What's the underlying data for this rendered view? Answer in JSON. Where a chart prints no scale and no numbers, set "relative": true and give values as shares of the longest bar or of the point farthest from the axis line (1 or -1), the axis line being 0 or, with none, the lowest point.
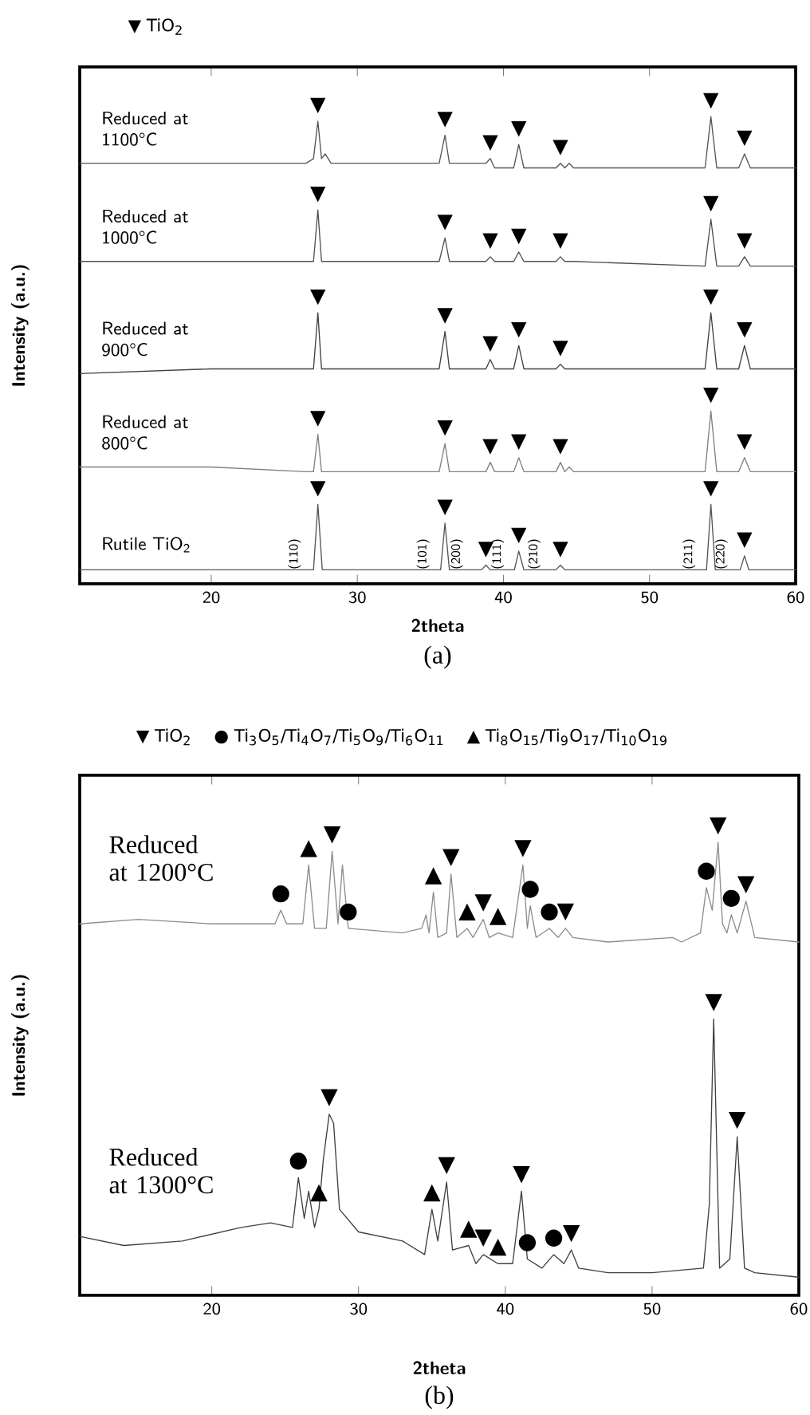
{
  "chart_data": [
    {
      "type": "line",
      "relative": true,
      "xlabel": "2theta",
      "ylabel": "Intensity (a.u.)",
      "xlim": [
        11,
        60
      ],
      "xticks": [
        20,
        30,
        40,
        50,
        60
      ],
      "x": [
        11,
        20,
        26.5,
        27.0,
        27.3,
        27.55,
        27.8,
        28.2,
        35.6,
        36.0,
        36.3,
        38.8,
        39.1,
        39.4,
        40.7,
        41.05,
        41.4,
        43.6,
        43.9,
        44.2,
        44.5,
        44.8,
        53.8,
        54.2,
        54.6,
        56.1,
        56.5,
        56.9,
        60
      ],
      "series": [
        {
          "name": "Reduced at 1100°C",
          "color": "#555555",
          "values": [
            0.9,
            0.9,
            0.9,
            0.91,
            0.99,
            0.91,
            0.92,
            0.9,
            0.9,
            0.96,
            0.9,
            0.9,
            0.91,
            0.89,
            0.89,
            0.94,
            0.89,
            0.89,
            0.9,
            0.89,
            0.9,
            0.89,
            0.89,
            1.0,
            0.89,
            0.89,
            0.92,
            0.89,
            0.89
          ]
        },
        {
          "name": "Reduced at 1000°C",
          "color": "#505050",
          "values": [
            0.69,
            0.69,
            0.69,
            0.69,
            0.8,
            0.69,
            0.69,
            0.69,
            0.69,
            0.74,
            0.69,
            0.69,
            0.7,
            0.69,
            0.69,
            0.71,
            0.69,
            0.69,
            0.7,
            0.69,
            0.69,
            0.69,
            0.68,
            0.78,
            0.68,
            0.68,
            0.7,
            0.68,
            0.68
          ]
        },
        {
          "name": "Reduced at 900°C",
          "color": "#404040",
          "values": [
            0.45,
            0.46,
            0.46,
            0.46,
            0.58,
            0.46,
            0.46,
            0.46,
            0.46,
            0.54,
            0.46,
            0.46,
            0.48,
            0.46,
            0.46,
            0.51,
            0.46,
            0.46,
            0.47,
            0.46,
            0.46,
            0.46,
            0.46,
            0.58,
            0.46,
            0.46,
            0.51,
            0.46,
            0.46
          ]
        },
        {
          "name": "Reduced at 800°C",
          "color": "#808080",
          "values": [
            0.25,
            0.25,
            0.24,
            0.24,
            0.32,
            0.24,
            0.24,
            0.24,
            0.24,
            0.3,
            0.24,
            0.24,
            0.26,
            0.24,
            0.24,
            0.27,
            0.24,
            0.24,
            0.26,
            0.24,
            0.25,
            0.24,
            0.24,
            0.37,
            0.24,
            0.24,
            0.27,
            0.24,
            0.24
          ]
        },
        {
          "name": "Rutile TiO$_{2}$",
          "color": "#555555",
          "x": [
            11,
            20,
            26.6,
            27.0,
            27.3,
            27.6,
            28.2,
            35.4,
            35.7,
            36.0,
            36.3,
            37.7,
            38.5,
            38.8,
            39.1,
            40.5,
            40.75,
            41.05,
            41.4,
            43.0,
            43.6,
            43.9,
            44.2,
            53.6,
            53.9,
            54.2,
            54.5,
            55.8,
            56.2,
            56.5,
            56.8,
            60
          ],
          "values": [
            0.03,
            0.03,
            0.03,
            0.03,
            0.17,
            0.03,
            0.03,
            0.03,
            0.03,
            0.13,
            0.03,
            0.03,
            0.03,
            0.04,
            0.03,
            0.03,
            0.03,
            0.07,
            0.03,
            0.03,
            0.03,
            0.04,
            0.03,
            0.03,
            0.03,
            0.17,
            0.03,
            0.03,
            0.03,
            0.06,
            0.03,
            0.03
          ]
        }
      ],
      "annotations": [
        "▼ TiO$_{2}$",
        {
          "text": "▼",
          "x": 27.3,
          "y": 0.99
        },
        {
          "text": "▼",
          "x": 36.0,
          "y": 0.96
        },
        {
          "text": "▼",
          "x": 39.1,
          "y": 0.91
        },
        {
          "text": "▼",
          "x": 41.05,
          "y": 0.94
        },
        {
          "text": "▼",
          "x": 43.9,
          "y": 0.9
        },
        {
          "text": "▼",
          "x": 54.2,
          "y": 1.0
        },
        {
          "text": "▼",
          "x": 56.5,
          "y": 0.92
        },
        {
          "text": "▼",
          "x": 27.3,
          "y": 0.8
        },
        {
          "text": "▼",
          "x": 36.0,
          "y": 0.74
        },
        {
          "text": "▼",
          "x": 39.1,
          "y": 0.7
        },
        {
          "text": "▼",
          "x": 41.05,
          "y": 0.71
        },
        {
          "text": "▼",
          "x": 43.9,
          "y": 0.7
        },
        {
          "text": "▼",
          "x": 54.2,
          "y": 0.78
        },
        {
          "text": "▼",
          "x": 56.5,
          "y": 0.7
        },
        {
          "text": "▼",
          "x": 27.3,
          "y": 0.58
        },
        {
          "text": "▼",
          "x": 36.0,
          "y": 0.54
        },
        {
          "text": "▼",
          "x": 39.1,
          "y": 0.48
        },
        {
          "text": "▼",
          "x": 41.05,
          "y": 0.51
        },
        {
          "text": "▼",
          "x": 43.9,
          "y": 0.47
        },
        {
          "text": "▼",
          "x": 54.2,
          "y": 0.58
        },
        {
          "text": "▼",
          "x": 56.5,
          "y": 0.51
        },
        {
          "text": "▼",
          "x": 27.3,
          "y": 0.32
        },
        {
          "text": "▼",
          "x": 36.0,
          "y": 0.3
        },
        {
          "text": "▼",
          "x": 39.1,
          "y": 0.26
        },
        {
          "text": "▼",
          "x": 41.05,
          "y": 0.27
        },
        {
          "text": "▼",
          "x": 43.9,
          "y": 0.26
        },
        {
          "text": "▼",
          "x": 54.2,
          "y": 0.37
        },
        {
          "text": "▼",
          "x": 56.5,
          "y": 0.27
        },
        {
          "text": "▼",
          "x": 27.3,
          "y": 0.17
        },
        {
          "text": "▼",
          "x": 36.0,
          "y": 0.13
        },
        {
          "text": "▼",
          "x": 38.8,
          "y": 0.04
        },
        {
          "text": "▼",
          "x": 41.05,
          "y": 0.07
        },
        {
          "text": "▼",
          "x": 43.9,
          "y": 0.04
        },
        {
          "text": "▼",
          "x": 54.2,
          "y": 0.17
        },
        {
          "text": "▼",
          "x": 56.5,
          "y": 0.06
        },
        {
          "text": "(110)",
          "x": 26.6,
          "y": 0.03
        },
        {
          "text": "(101)",
          "x": 35.4,
          "y": 0.03
        },
        {
          "text": "(200)",
          "x": 37.7,
          "y": 0.03
        },
        {
          "text": "(111)",
          "x": 40.5,
          "y": 0.03
        },
        {
          "text": "(210)",
          "x": 43.0,
          "y": 0.03
        },
        {
          "text": "(211)",
          "x": 53.6,
          "y": 0.03
        },
        {
          "text": "(220)",
          "x": 55.8,
          "y": 0.03
        },
        "(a)"
      ]
    },
    {
      "type": "line",
      "relative": true,
      "xlabel": "2theta",
      "ylabel": "Intensity (a.u.)",
      "xlim": [
        11,
        60
      ],
      "xticks": [
        20,
        30,
        40,
        50,
        60
      ],
      "series": [
        {
          "name": "Reduced at 1200°C",
          "color": "#8c8c8c",
          "x": [
            11,
            15,
            20,
            24.3,
            24.7,
            25.1,
            26.2,
            26.6,
            27.0,
            27.8,
            28.2,
            28.6,
            28.9,
            29.3,
            33,
            34.3,
            34.6,
            34.8,
            35.1,
            35.4,
            36.0,
            36.3,
            36.7,
            37.4,
            37.8,
            38.5,
            38.9,
            39.5,
            40.5,
            41.2,
            41.5,
            41.7,
            42.1,
            43.0,
            43.6,
            44.1,
            44.6,
            47,
            51.4,
            52,
            53.3,
            53.7,
            54.1,
            54.5,
            54.8,
            55.1,
            55.4,
            55.8,
            56.4,
            57.0,
            60
          ],
          "values": [
            0.82,
            0.83,
            0.82,
            0.82,
            0.85,
            0.82,
            0.82,
            0.95,
            0.81,
            0.81,
            0.98,
            0.82,
            0.95,
            0.81,
            0.8,
            0.81,
            0.84,
            0.8,
            0.89,
            0.79,
            0.8,
            0.93,
            0.79,
            0.81,
            0.79,
            0.83,
            0.79,
            0.8,
            0.79,
            0.95,
            0.81,
            0.86,
            0.79,
            0.81,
            0.79,
            0.81,
            0.79,
            0.78,
            0.79,
            0.78,
            0.8,
            0.9,
            0.85,
            1.0,
            0.82,
            0.8,
            0.84,
            0.8,
            0.87,
            0.79,
            0.78
          ]
        },
        {
          "name": "Reduced at 1300°C",
          "color": "#404040",
          "x": [
            11,
            14,
            18,
            22,
            24,
            25.5,
            25.9,
            26.3,
            26.6,
            27.0,
            27.3,
            27.6,
            28.0,
            28.3,
            28.7,
            30,
            33,
            34.5,
            35.0,
            35.4,
            36.0,
            36.4,
            37.5,
            38.0,
            38.5,
            39.5,
            40.5,
            41.1,
            41.5,
            42.5,
            43.3,
            44.0,
            44.5,
            45,
            47,
            50,
            53.5,
            53.9,
            54.2,
            54.6,
            55.3,
            55.8,
            56.3,
            57,
            60
          ],
          "values": [
            0.13,
            0.11,
            0.12,
            0.15,
            0.16,
            0.15,
            0.26,
            0.17,
            0.23,
            0.15,
            0.19,
            0.3,
            0.4,
            0.38,
            0.19,
            0.14,
            0.12,
            0.09,
            0.19,
            0.12,
            0.25,
            0.1,
            0.11,
            0.07,
            0.09,
            0.07,
            0.07,
            0.23,
            0.08,
            0.06,
            0.09,
            0.07,
            0.1,
            0.06,
            0.05,
            0.05,
            0.06,
            0.2,
            0.61,
            0.06,
            0.08,
            0.35,
            0.06,
            0.05,
            0.04
          ]
        }
      ],
      "annotations": [
        "▼ TiO$_{2}$",
        "● Ti$_{3}$O$_{5}$/Ti$_{4}$O$_{7}$/Ti$_{5}$O$_{9}$/Ti$_{6}$O$_{11}$",
        "▲ Ti$_{8}$O$_{15}$/Ti$_{9}$O$_{17}$/Ti$_{10}$O$_{19}$",
        {
          "text": "●",
          "x": 24.7,
          "y": 0.85
        },
        {
          "text": "▲",
          "x": 26.6,
          "y": 0.95
        },
        {
          "text": "▼",
          "x": 28.2,
          "y": 0.98
        },
        {
          "text": "●",
          "x": 29.3,
          "y": 0.81
        },
        {
          "text": "▲",
          "x": 35.1,
          "y": 0.89
        },
        {
          "text": "▼",
          "x": 36.3,
          "y": 0.93
        },
        {
          "text": "▲",
          "x": 37.4,
          "y": 0.81
        },
        {
          "text": "▼",
          "x": 38.5,
          "y": 0.83
        },
        {
          "text": "▲",
          "x": 39.5,
          "y": 0.8
        },
        {
          "text": "▼",
          "x": 41.2,
          "y": 0.95
        },
        {
          "text": "●",
          "x": 41.7,
          "y": 0.86
        },
        {
          "text": "●",
          "x": 43.0,
          "y": 0.81
        },
        {
          "text": "▼",
          "x": 44.1,
          "y": 0.81
        },
        {
          "text": "●",
          "x": 53.7,
          "y": 0.9
        },
        {
          "text": "▼",
          "x": 54.5,
          "y": 1.0
        },
        {
          "text": "●",
          "x": 55.4,
          "y": 0.84
        },
        {
          "text": "▼",
          "x": 56.4,
          "y": 0.87
        },
        {
          "text": "●",
          "x": 25.9,
          "y": 0.26
        },
        {
          "text": "▲",
          "x": 27.3,
          "y": 0.19
        },
        {
          "text": "▼",
          "x": 28.0,
          "y": 0.4
        },
        {
          "text": "▲",
          "x": 35.0,
          "y": 0.19
        },
        {
          "text": "▼",
          "x": 36.0,
          "y": 0.25
        },
        {
          "text": "▲",
          "x": 37.5,
          "y": 0.11
        },
        {
          "text": "▼",
          "x": 38.5,
          "y": 0.09
        },
        {
          "text": "▲",
          "x": 39.5,
          "y": 0.07
        },
        {
          "text": "▼",
          "x": 41.1,
          "y": 0.23
        },
        {
          "text": "●",
          "x": 41.5,
          "y": 0.08
        },
        {
          "text": "●",
          "x": 43.3,
          "y": 0.09
        },
        {
          "text": "▼",
          "x": 44.5,
          "y": 0.1
        },
        {
          "text": "▼",
          "x": 54.2,
          "y": 0.61
        },
        {
          "text": "▼",
          "x": 55.8,
          "y": 0.35
        },
        "(b)"
      ]
    }
  ]
}
